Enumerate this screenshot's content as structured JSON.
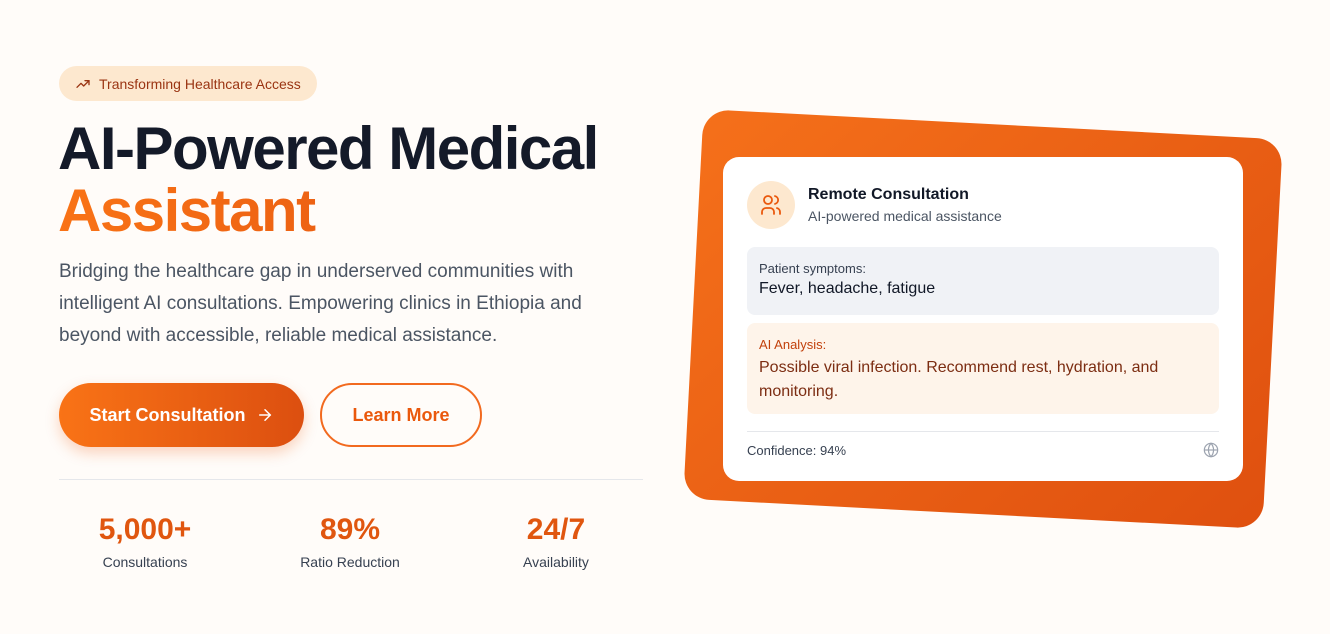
{
  "badge": {
    "icon": "trending-up-icon",
    "label": "Transforming Healthcare Access"
  },
  "hero": {
    "title_line1": "AI-Powered Medical",
    "title_line2": "Assistant",
    "description": "Bridging the healthcare gap in underserved communities with intelligent AI consultations. Empowering clinics in Ethiopia and beyond with accessible, reliable medical assistance."
  },
  "buttons": {
    "primary": "Start Consultation",
    "secondary": "Learn More"
  },
  "stats": [
    {
      "value": "5,000+",
      "label": "Consultations"
    },
    {
      "value": "89%",
      "label": "Ratio Reduction"
    },
    {
      "value": "24/7",
      "label": "Availability"
    }
  ],
  "card": {
    "title": "Remote Consultation",
    "subtitle": "AI-powered medical assistance",
    "symptoms_label": "Patient symptoms:",
    "symptoms": "Fever, headache, fatigue",
    "analysis_label": "AI Analysis:",
    "analysis": "Possible viral infection. Recommend rest, hydration, and monitoring.",
    "confidence": "Confidence: 94%"
  },
  "colors": {
    "accent": "#ea580c",
    "badge_bg": "#fde8cf"
  }
}
